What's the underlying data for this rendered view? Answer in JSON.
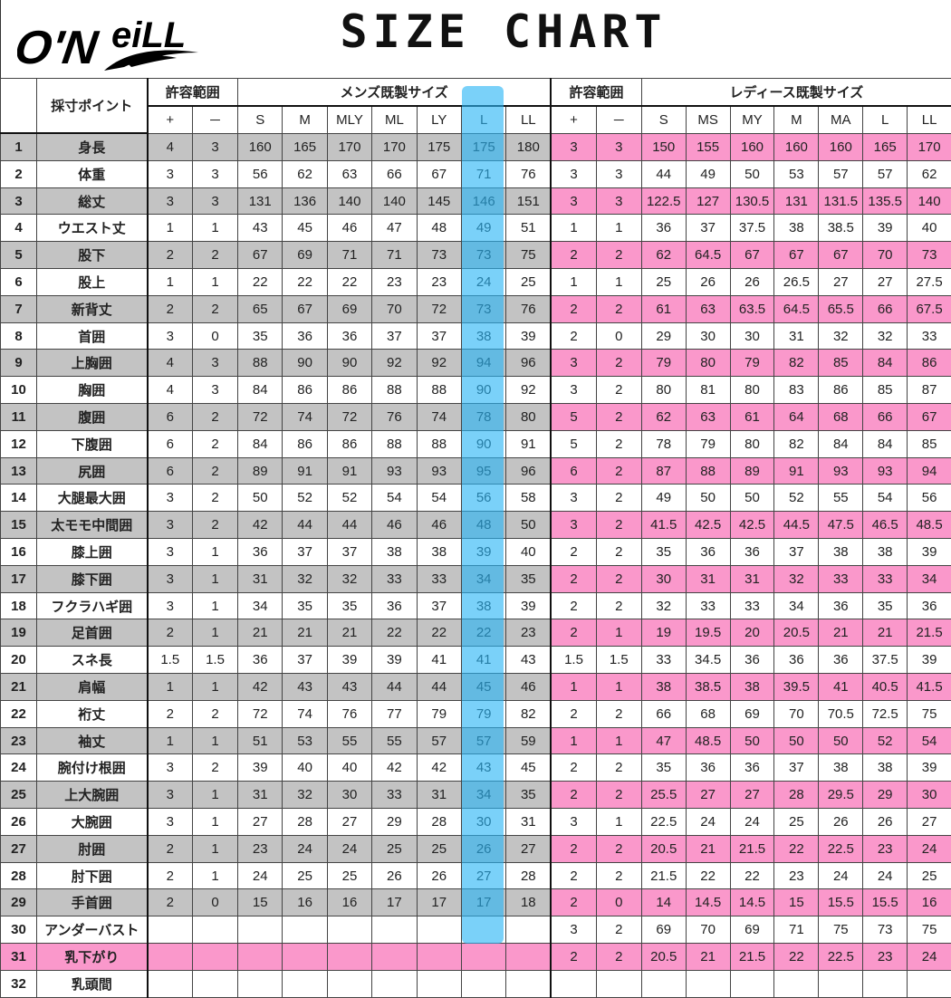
{
  "logo_text": "O'NEILL",
  "title": "SIZE CHART",
  "highlight_color": "#28b4f5",
  "colors": {
    "gray": "#c3c3c3",
    "pink": "#fa98cb"
  },
  "header": {
    "point": "採寸ポイント",
    "tolerance": "許容範囲",
    "mens": "メンズ既製サイズ",
    "ladies": "レディース既製サイズ",
    "plus": "+",
    "minus": "－",
    "mens_sizes": [
      "S",
      "M",
      "MLY",
      "ML",
      "LY",
      "L",
      "LL"
    ],
    "ladies_sizes": [
      "S",
      "MS",
      "MY",
      "M",
      "MA",
      "L",
      "LL"
    ],
    "highlighted_mens_size": "L"
  },
  "rows": [
    {
      "no": "1",
      "point": "身長",
      "m": [
        "4",
        "3",
        "160",
        "165",
        "170",
        "170",
        "175",
        "175",
        "180"
      ],
      "l": [
        "3",
        "3",
        "150",
        "155",
        "160",
        "160",
        "160",
        "165",
        "170"
      ]
    },
    {
      "no": "2",
      "point": "体重",
      "m": [
        "3",
        "3",
        "56",
        "62",
        "63",
        "66",
        "67",
        "71",
        "76"
      ],
      "l": [
        "3",
        "3",
        "44",
        "49",
        "50",
        "53",
        "57",
        "57",
        "62"
      ]
    },
    {
      "no": "3",
      "point": "総丈",
      "m": [
        "3",
        "3",
        "131",
        "136",
        "140",
        "140",
        "145",
        "146",
        "151"
      ],
      "l": [
        "3",
        "3",
        "122.5",
        "127",
        "130.5",
        "131",
        "131.5",
        "135.5",
        "140"
      ]
    },
    {
      "no": "4",
      "point": "ウエスト丈",
      "m": [
        "1",
        "1",
        "43",
        "45",
        "46",
        "47",
        "48",
        "49",
        "51"
      ],
      "l": [
        "1",
        "1",
        "36",
        "37",
        "37.5",
        "38",
        "38.5",
        "39",
        "40"
      ]
    },
    {
      "no": "5",
      "point": "股下",
      "m": [
        "2",
        "2",
        "67",
        "69",
        "71",
        "71",
        "73",
        "73",
        "75"
      ],
      "l": [
        "2",
        "2",
        "62",
        "64.5",
        "67",
        "67",
        "67",
        "70",
        "73"
      ]
    },
    {
      "no": "6",
      "point": "股上",
      "m": [
        "1",
        "1",
        "22",
        "22",
        "22",
        "23",
        "23",
        "24",
        "25"
      ],
      "l": [
        "1",
        "1",
        "25",
        "26",
        "26",
        "26.5",
        "27",
        "27",
        "27.5"
      ]
    },
    {
      "no": "7",
      "point": "新背丈",
      "m": [
        "2",
        "2",
        "65",
        "67",
        "69",
        "70",
        "72",
        "73",
        "76"
      ],
      "l": [
        "2",
        "2",
        "61",
        "63",
        "63.5",
        "64.5",
        "65.5",
        "66",
        "67.5"
      ]
    },
    {
      "no": "8",
      "point": "首囲",
      "m": [
        "3",
        "0",
        "35",
        "36",
        "36",
        "37",
        "37",
        "38",
        "39"
      ],
      "l": [
        "2",
        "0",
        "29",
        "30",
        "30",
        "31",
        "32",
        "32",
        "33"
      ]
    },
    {
      "no": "9",
      "point": "上胸囲",
      "m": [
        "4",
        "3",
        "88",
        "90",
        "90",
        "92",
        "92",
        "94",
        "96"
      ],
      "l": [
        "3",
        "2",
        "79",
        "80",
        "79",
        "82",
        "85",
        "84",
        "86"
      ]
    },
    {
      "no": "10",
      "point": "胸囲",
      "m": [
        "4",
        "3",
        "84",
        "86",
        "86",
        "88",
        "88",
        "90",
        "92"
      ],
      "l": [
        "3",
        "2",
        "80",
        "81",
        "80",
        "83",
        "86",
        "85",
        "87"
      ]
    },
    {
      "no": "11",
      "point": "腹囲",
      "m": [
        "6",
        "2",
        "72",
        "74",
        "72",
        "76",
        "74",
        "78",
        "80"
      ],
      "l": [
        "5",
        "2",
        "62",
        "63",
        "61",
        "64",
        "68",
        "66",
        "67"
      ]
    },
    {
      "no": "12",
      "point": "下腹囲",
      "m": [
        "6",
        "2",
        "84",
        "86",
        "86",
        "88",
        "88",
        "90",
        "91"
      ],
      "l": [
        "5",
        "2",
        "78",
        "79",
        "80",
        "82",
        "84",
        "84",
        "85"
      ]
    },
    {
      "no": "13",
      "point": "尻囲",
      "m": [
        "6",
        "2",
        "89",
        "91",
        "91",
        "93",
        "93",
        "95",
        "96"
      ],
      "l": [
        "6",
        "2",
        "87",
        "88",
        "89",
        "91",
        "93",
        "93",
        "94"
      ]
    },
    {
      "no": "14",
      "point": "大腿最大囲",
      "m": [
        "3",
        "2",
        "50",
        "52",
        "52",
        "54",
        "54",
        "56",
        "58"
      ],
      "l": [
        "3",
        "2",
        "49",
        "50",
        "50",
        "52",
        "55",
        "54",
        "56"
      ]
    },
    {
      "no": "15",
      "point": "太モモ中間囲",
      "m": [
        "3",
        "2",
        "42",
        "44",
        "44",
        "46",
        "46",
        "48",
        "50"
      ],
      "l": [
        "3",
        "2",
        "41.5",
        "42.5",
        "42.5",
        "44.5",
        "47.5",
        "46.5",
        "48.5"
      ]
    },
    {
      "no": "16",
      "point": "膝上囲",
      "m": [
        "3",
        "1",
        "36",
        "37",
        "37",
        "38",
        "38",
        "39",
        "40"
      ],
      "l": [
        "2",
        "2",
        "35",
        "36",
        "36",
        "37",
        "38",
        "38",
        "39"
      ]
    },
    {
      "no": "17",
      "point": "膝下囲",
      "m": [
        "3",
        "1",
        "31",
        "32",
        "32",
        "33",
        "33",
        "34",
        "35"
      ],
      "l": [
        "2",
        "2",
        "30",
        "31",
        "31",
        "32",
        "33",
        "33",
        "34"
      ]
    },
    {
      "no": "18",
      "point": "フクラハギ囲",
      "m": [
        "3",
        "1",
        "34",
        "35",
        "35",
        "36",
        "37",
        "38",
        "39"
      ],
      "l": [
        "2",
        "2",
        "32",
        "33",
        "33",
        "34",
        "36",
        "35",
        "36"
      ]
    },
    {
      "no": "19",
      "point": "足首囲",
      "m": [
        "2",
        "1",
        "21",
        "21",
        "21",
        "22",
        "22",
        "22",
        "23"
      ],
      "l": [
        "2",
        "1",
        "19",
        "19.5",
        "20",
        "20.5",
        "21",
        "21",
        "21.5"
      ]
    },
    {
      "no": "20",
      "point": "スネ長",
      "m": [
        "1.5",
        "1.5",
        "36",
        "37",
        "39",
        "39",
        "41",
        "41",
        "43"
      ],
      "l": [
        "1.5",
        "1.5",
        "33",
        "34.5",
        "36",
        "36",
        "36",
        "37.5",
        "39"
      ]
    },
    {
      "no": "21",
      "point": "肩幅",
      "m": [
        "1",
        "1",
        "42",
        "43",
        "43",
        "44",
        "44",
        "45",
        "46"
      ],
      "l": [
        "1",
        "1",
        "38",
        "38.5",
        "38",
        "39.5",
        "41",
        "40.5",
        "41.5"
      ]
    },
    {
      "no": "22",
      "point": "裄丈",
      "m": [
        "2",
        "2",
        "72",
        "74",
        "76",
        "77",
        "79",
        "79",
        "82"
      ],
      "l": [
        "2",
        "2",
        "66",
        "68",
        "69",
        "70",
        "70.5",
        "72.5",
        "75"
      ]
    },
    {
      "no": "23",
      "point": "袖丈",
      "m": [
        "1",
        "1",
        "51",
        "53",
        "55",
        "55",
        "57",
        "57",
        "59"
      ],
      "l": [
        "1",
        "1",
        "47",
        "48.5",
        "50",
        "50",
        "50",
        "52",
        "54"
      ]
    },
    {
      "no": "24",
      "point": "腕付け根囲",
      "m": [
        "3",
        "2",
        "39",
        "40",
        "40",
        "42",
        "42",
        "43",
        "45"
      ],
      "l": [
        "2",
        "2",
        "35",
        "36",
        "36",
        "37",
        "38",
        "38",
        "39"
      ]
    },
    {
      "no": "25",
      "point": "上大腕囲",
      "m": [
        "3",
        "1",
        "31",
        "32",
        "30",
        "33",
        "31",
        "34",
        "35"
      ],
      "l": [
        "2",
        "2",
        "25.5",
        "27",
        "27",
        "28",
        "29.5",
        "29",
        "30"
      ]
    },
    {
      "no": "26",
      "point": "大腕囲",
      "m": [
        "3",
        "1",
        "27",
        "28",
        "27",
        "29",
        "28",
        "30",
        "31"
      ],
      "l": [
        "3",
        "1",
        "22.5",
        "24",
        "24",
        "25",
        "26",
        "26",
        "27"
      ]
    },
    {
      "no": "27",
      "point": "肘囲",
      "m": [
        "2",
        "1",
        "23",
        "24",
        "24",
        "25",
        "25",
        "26",
        "27"
      ],
      "l": [
        "2",
        "2",
        "20.5",
        "21",
        "21.5",
        "22",
        "22.5",
        "23",
        "24"
      ]
    },
    {
      "no": "28",
      "point": "肘下囲",
      "m": [
        "2",
        "1",
        "24",
        "25",
        "25",
        "26",
        "26",
        "27",
        "28"
      ],
      "l": [
        "2",
        "2",
        "21.5",
        "22",
        "22",
        "23",
        "24",
        "24",
        "25"
      ]
    },
    {
      "no": "29",
      "point": "手首囲",
      "m": [
        "2",
        "0",
        "15",
        "16",
        "16",
        "17",
        "17",
        "17",
        "18"
      ],
      "l": [
        "2",
        "0",
        "14",
        "14.5",
        "14.5",
        "15",
        "15.5",
        "15.5",
        "16"
      ]
    },
    {
      "no": "30",
      "point": "アンダーバスト",
      "m": [
        "",
        "",
        "",
        "",
        "",
        "",
        "",
        "",
        ""
      ],
      "l": [
        "3",
        "2",
        "69",
        "70",
        "69",
        "71",
        "75",
        "73",
        "75"
      ]
    },
    {
      "no": "31",
      "point": "乳下がり",
      "m": [
        "",
        "",
        "",
        "",
        "",
        "",
        "",
        "",
        ""
      ],
      "l": [
        "2",
        "2",
        "20.5",
        "21",
        "21.5",
        "22",
        "22.5",
        "23",
        "24"
      ]
    },
    {
      "no": "32",
      "point": "乳頭間",
      "m": [
        "",
        "",
        "",
        "",
        "",
        "",
        "",
        "",
        ""
      ],
      "l": [
        "",
        "",
        "",
        "",
        "",
        "",
        "",
        "",
        ""
      ]
    }
  ]
}
